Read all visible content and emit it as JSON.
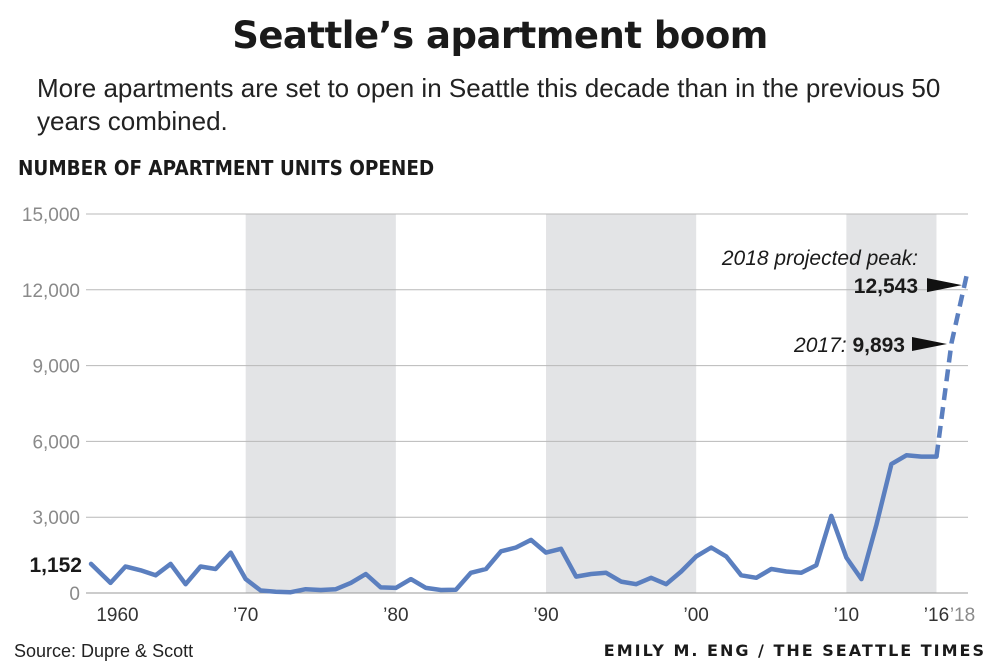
{
  "title": "Seattle’s apartment boom",
  "subtitle": "More apartments are set to open in Seattle this decade than in the previous 50 years combined.",
  "axis_heading": "NUMBER OF APARTMENT UNITS OPENED",
  "source": "Source: Dupre & Scott",
  "credit": "EMILY M. ENG / THE SEATTLE TIMES",
  "colors": {
    "line": "#5b7fbf",
    "shade": "#e3e4e6",
    "grid": "#b8b8b8"
  },
  "chart_data": {
    "type": "line",
    "title": "Seattle’s apartment boom",
    "ylabel": "NUMBER OF APARTMENT UNITS OPENED",
    "ylim": [
      0,
      15000
    ],
    "yticks": [
      0,
      3000,
      6000,
      9000,
      12000,
      15000
    ],
    "ytick_labels": [
      "0",
      "3,000",
      "6,000",
      "9,000",
      "12,000",
      "15,000"
    ],
    "xlim": [
      1959.7,
      2018.1
    ],
    "xticks": [
      1960,
      1970,
      1980,
      1990,
      2000,
      2010,
      2016,
      2018
    ],
    "xtick_labels": [
      "1960",
      "’70",
      "’80",
      "’90",
      "’00",
      "’10",
      "’16",
      "’18"
    ],
    "shaded_decades": [
      [
        1970,
        1980
      ],
      [
        1990,
        2000
      ],
      [
        2010,
        2016
      ]
    ],
    "series": [
      {
        "name": "Apartment units opened",
        "x": [
          1959.7,
          1961,
          1962,
          1963,
          1964,
          1965,
          1966,
          1967,
          1968,
          1969,
          1970,
          1971,
          1972,
          1973,
          1974,
          1975,
          1976,
          1977,
          1978,
          1979,
          1980,
          1981,
          1982,
          1983,
          1984,
          1985,
          1986,
          1987,
          1988,
          1989,
          1990,
          1991,
          1992,
          1993,
          1994,
          1995,
          1996,
          1997,
          1998,
          1999,
          2000,
          2001,
          2002,
          2003,
          2004,
          2005,
          2006,
          2007,
          2008,
          2009,
          2010,
          2011,
          2012,
          2013,
          2014,
          2015,
          2016
        ],
        "values": [
          1152,
          400,
          1050,
          900,
          700,
          1150,
          350,
          1050,
          950,
          1600,
          550,
          100,
          50,
          30,
          150,
          120,
          150,
          400,
          750,
          220,
          200,
          550,
          200,
          120,
          130,
          800,
          950,
          1650,
          1800,
          2100,
          1600,
          1750,
          650,
          750,
          800,
          450,
          350,
          600,
          350,
          850,
          1450,
          1800,
          1450,
          700,
          600,
          950,
          850,
          800,
          1100,
          3050,
          1400,
          550,
          2700,
          5100,
          5450,
          5400,
          5400
        ]
      },
      {
        "name": "Projected",
        "dashed": true,
        "x": [
          2016,
          2017,
          2018
        ],
        "values": [
          5400,
          9893,
          12543
        ]
      }
    ],
    "annotations": [
      {
        "id": "first",
        "label": "1,152",
        "x": 1959.7,
        "value": 1152
      },
      {
        "id": "y2017",
        "label_italic": "2017:",
        "label_bold": "9,893",
        "x": 2017,
        "value": 9893
      },
      {
        "id": "y2018",
        "label_italic": "2018 projected peak:",
        "label_bold": "12,543",
        "x": 2018,
        "value": 12543
      }
    ]
  }
}
